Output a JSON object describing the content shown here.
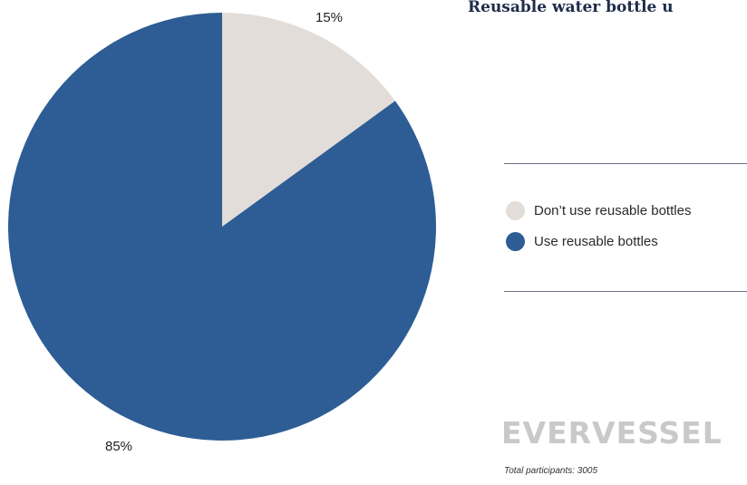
{
  "chart_data": {
    "type": "pie",
    "title": "Reusable water bottle u",
    "slices": [
      {
        "label": "Don’t use reusable bottles",
        "value": 15,
        "display": "15%",
        "color": "#e2ddd8"
      },
      {
        "label": "Use reusable bottles",
        "value": 85,
        "display": "85%",
        "color": "#2d5d94"
      }
    ],
    "legend_position": "right"
  },
  "brand": {
    "logo_text": "EVERVESSEL"
  },
  "footnote": "Total participants: 3005"
}
